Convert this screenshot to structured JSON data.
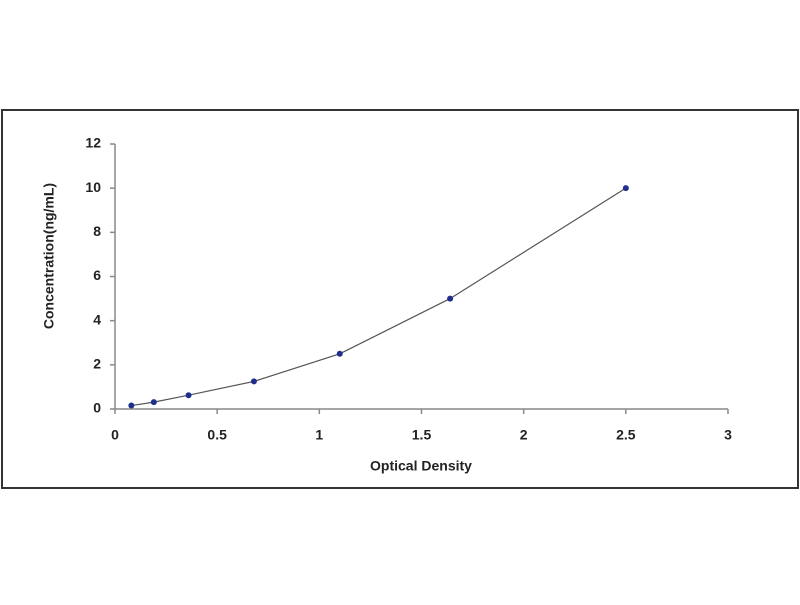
{
  "chart_data": {
    "type": "line",
    "x_label": "Optical Density",
    "y_label": "Concentration(ng/mL)",
    "x": [
      0.08,
      0.19,
      0.36,
      0.68,
      1.1,
      1.64,
      2.5
    ],
    "values": [
      0.156,
      0.312,
      0.625,
      1.25,
      2.5,
      5,
      10
    ],
    "color": "#1f2f8f",
    "line_color": "#555555",
    "xlim": [
      0,
      3
    ],
    "xticks": [
      0,
      0.5,
      1,
      1.5,
      2,
      2.5,
      3
    ],
    "ylim": [
      0,
      12
    ],
    "yticks": [
      0,
      2,
      4,
      6,
      8,
      10,
      12
    ],
    "grid": false
  }
}
